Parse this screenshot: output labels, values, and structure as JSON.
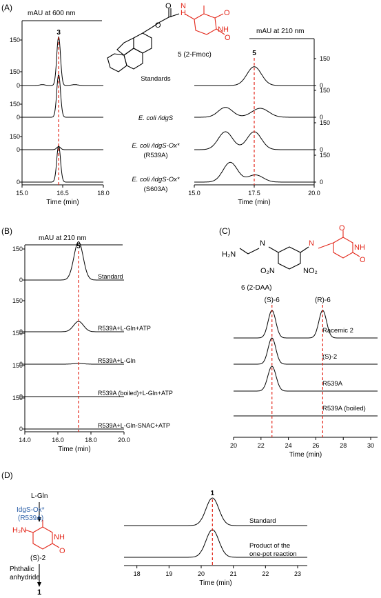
{
  "colors": {
    "trace": "#000000",
    "marker": "#e32619",
    "fragment": "#e32619",
    "enzyme": "#2b5fa8"
  },
  "panels": {
    "A": "(A)",
    "B": "(B)",
    "C": "(C)",
    "D": "(D)"
  },
  "structures": {
    "fmoc_label": "5 (2-Fmoc)",
    "daa_label": "6 (2-DAA)",
    "d_reactant": "L-Gln",
    "d_enzyme_1": "IdgS-Ox*",
    "d_enzyme_2": "(R539A)",
    "d_intermediate": "(S)-2",
    "d_reagent_1": "Phthalic",
    "d_reagent_2": "anhydride",
    "d_product": "1"
  },
  "chart_data": [
    {
      "id": "A_left",
      "type": "line",
      "title": "mAU  at 600 nm",
      "xlabel": "Time (min)",
      "xlim": [
        15.0,
        18.0
      ],
      "xticks": [
        "15.0",
        "16.5",
        "18.0"
      ],
      "peak_label": "3",
      "marker_x": 16.35,
      "series": [
        {
          "ticks": [
            "150",
            "0"
          ],
          "ymax": 150,
          "peaks": [
            [
              16.35,
              160,
              0.07
            ],
            [
              15.75,
              3,
              0.1
            ],
            [
              16.95,
              3,
              0.12
            ]
          ]
        },
        {
          "ticks": [
            "150",
            "0"
          ],
          "ymax": 150,
          "peaks": [
            [
              16.35,
              140,
              0.07
            ]
          ]
        },
        {
          "ticks": [
            "150",
            "0"
          ],
          "ymax": 150,
          "peaks": [
            [
              16.35,
              10,
              0.07
            ]
          ]
        },
        {
          "ticks": [
            "150",
            "0"
          ],
          "ymax": 150,
          "peaks": [
            [
              16.35,
              120,
              0.07
            ]
          ]
        }
      ],
      "center_labels": [
        [
          "Standards"
        ],
        [
          "E. coli /idgS"
        ],
        [
          "E. coli /idgS-Ox*",
          "(R539A)"
        ],
        [
          "E. coli /idgS-Ox*",
          "(S603A)"
        ]
      ]
    },
    {
      "id": "A_right",
      "type": "line",
      "title": "mAU  at 210  nm",
      "xlabel": "Time (min)",
      "xlim": [
        15.0,
        20.0
      ],
      "xticks": [
        "15.0",
        "17.5",
        "20.0"
      ],
      "peak_label": "5",
      "marker_x": 17.5,
      "series": [
        {
          "ticks": [
            "150",
            "0"
          ],
          "ymax": 150,
          "peaks": [
            [
              17.5,
              105,
              0.3
            ]
          ]
        },
        {
          "ticks": [
            "150",
            "0"
          ],
          "ymax": 150,
          "peaks": [
            [
              16.3,
              55,
              0.3
            ],
            [
              17.75,
              50,
              0.35
            ]
          ]
        },
        {
          "ticks": [
            "150",
            "0"
          ],
          "ymax": 150,
          "peaks": [
            [
              16.3,
              100,
              0.3
            ],
            [
              17.5,
              100,
              0.3
            ]
          ]
        },
        {
          "ticks": [
            "150",
            "0"
          ],
          "ymax": 150,
          "peaks": [
            [
              16.5,
              110,
              0.3
            ],
            [
              17.55,
              40,
              0.32
            ]
          ]
        }
      ]
    },
    {
      "id": "B",
      "type": "line",
      "title": "mAU  at 210  nm",
      "xlabel": "Time (min)",
      "xlim": [
        14.0,
        20.0
      ],
      "xticks": [
        "14.0",
        "16.0",
        "18.0",
        "20.0"
      ],
      "peak_label": "5",
      "marker_x": 17.25,
      "series": [
        {
          "name": "Standard",
          "ticks": [
            "150",
            "0"
          ],
          "ymax": 150,
          "peaks": [
            [
              17.25,
              185,
              0.28
            ]
          ]
        },
        {
          "name": "R539A+L-Gln+ATP",
          "ticks": [
            "150",
            "0"
          ],
          "ymax": 150,
          "peaks": [
            [
              17.25,
              50,
              0.3
            ]
          ]
        },
        {
          "name": "R539A+L-Gln",
          "ticks": [
            "150",
            "0"
          ],
          "ymax": 150,
          "peaks": [
            [
              17.25,
              4,
              0.3
            ]
          ]
        },
        {
          "name": "R539A (boiled)+L-Gln+ATP",
          "ticks": [
            "150",
            "0"
          ],
          "ymax": 150,
          "peaks": []
        },
        {
          "name": "R539A+L-Gln-SNAC+ATP",
          "ticks": [
            "150",
            "0"
          ],
          "ymax": 150,
          "peaks": []
        }
      ]
    },
    {
      "id": "C",
      "type": "line",
      "xlabel": "Time (min)",
      "xlim": [
        20,
        30.5
      ],
      "xticks": [
        "20",
        "22",
        "24",
        "26",
        "28",
        "30"
      ],
      "marker_x": [
        22.8,
        26.5
      ],
      "peak_labels": [
        "(S)-6",
        "(R)-6"
      ],
      "series": [
        {
          "name": "Racemic 2",
          "peaks": [
            [
              22.8,
              1.0,
              0.28
            ],
            [
              26.5,
              1.0,
              0.28
            ]
          ]
        },
        {
          "name": "(S)-2",
          "peaks": [
            [
              22.8,
              0.95,
              0.28
            ]
          ]
        },
        {
          "name": "R539A",
          "peaks": [
            [
              22.8,
              0.9,
              0.3
            ]
          ]
        },
        {
          "name": "R539A (boiled)",
          "peaks": []
        }
      ]
    },
    {
      "id": "D",
      "type": "line",
      "xlabel": "Time (min)",
      "xlim": [
        17.6,
        23.3
      ],
      "xticks": [
        "18",
        "19",
        "20",
        "21",
        "22",
        "23"
      ],
      "peak_label": "1",
      "marker_x": 20.35,
      "series": [
        {
          "name": "Standard",
          "peaks": [
            [
              20.35,
              1.0,
              0.2
            ]
          ]
        },
        {
          "name": "Product  of  the one-pot  reaction",
          "peaks": [
            [
              20.35,
              1.0,
              0.2
            ]
          ]
        }
      ]
    }
  ]
}
